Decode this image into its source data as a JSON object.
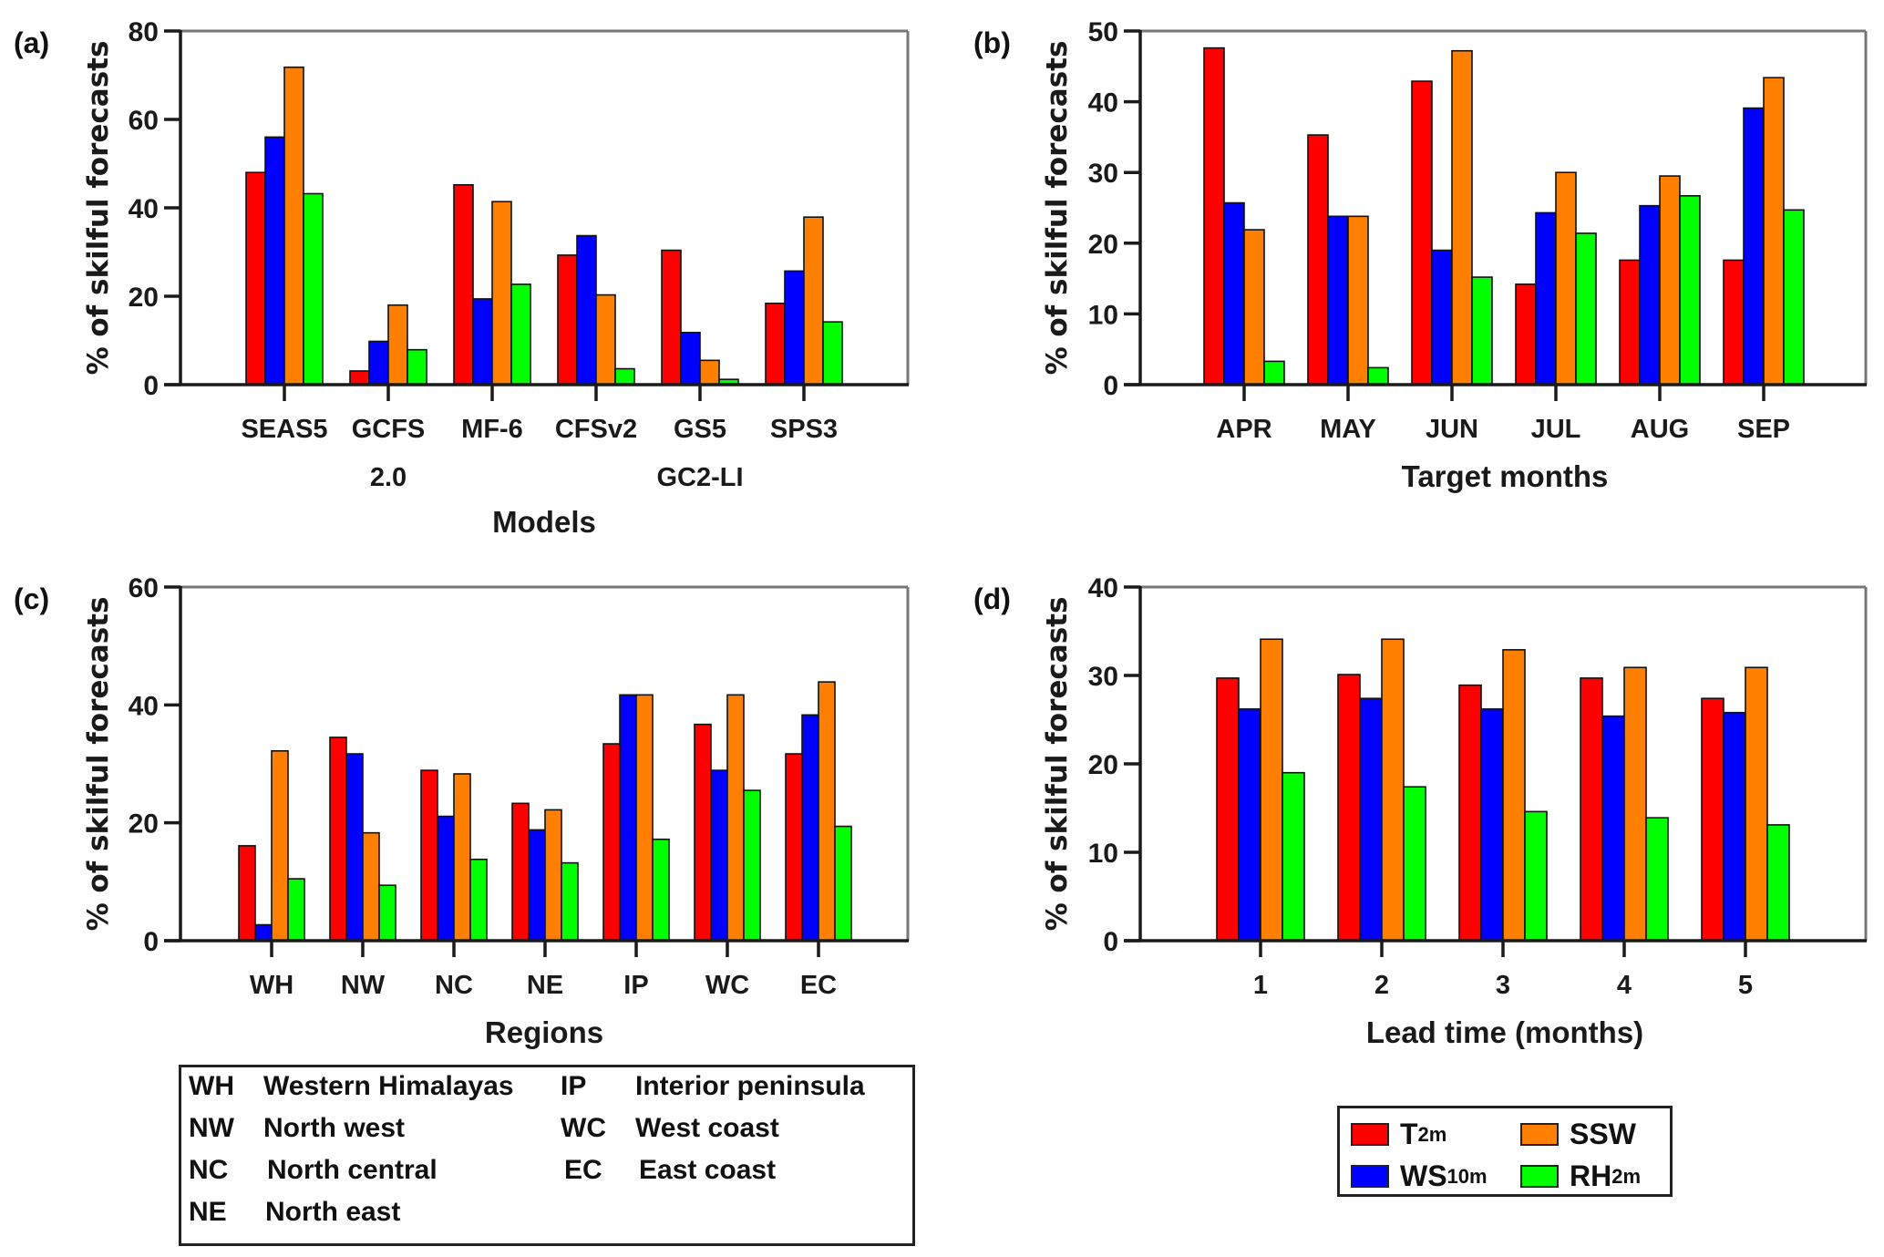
{
  "series_meta": [
    {
      "key": "T2m",
      "label": "T",
      "sub": "2m",
      "color": "#ff0000"
    },
    {
      "key": "WS10m",
      "label": "WS",
      "sub": "10m",
      "color": "#0000ff"
    },
    {
      "key": "SSW",
      "label": "SSW",
      "sub": "",
      "color": "#ff8000"
    },
    {
      "key": "RH2m",
      "label": "RH",
      "sub": "2m",
      "color": "#00ff00"
    }
  ],
  "chart_data": [
    {
      "panel": "(a)",
      "type": "bar",
      "title": "",
      "xlabel": "Models",
      "ylabel": "% of skilful forecasts",
      "ylim": [
        0,
        80
      ],
      "yticks": [
        0,
        20,
        40,
        60,
        80
      ],
      "grid": false,
      "categories": [
        "SEAS5",
        "GCFS",
        "MF-6",
        "CFSv2",
        "GS5",
        "SPS3"
      ],
      "categories_line2": [
        "",
        "2.0",
        "",
        "",
        "GC2-LI",
        ""
      ],
      "series": [
        {
          "name": "T2m",
          "values": [
            48.0,
            3.1,
            45.2,
            29.3,
            30.4,
            18.4
          ]
        },
        {
          "name": "WS10m",
          "values": [
            56.0,
            9.8,
            19.4,
            33.7,
            11.8,
            25.7
          ]
        },
        {
          "name": "SSW",
          "values": [
            71.8,
            18.0,
            41.4,
            20.3,
            5.5,
            37.9
          ]
        },
        {
          "name": "RH2m",
          "values": [
            43.2,
            7.9,
            22.7,
            3.6,
            1.2,
            14.2
          ]
        }
      ]
    },
    {
      "panel": "(b)",
      "type": "bar",
      "title": "",
      "xlabel": "Target months",
      "ylabel": "% of skilful forecasts",
      "ylim": [
        0,
        50
      ],
      "yticks": [
        0,
        10,
        20,
        30,
        40,
        50
      ],
      "grid": false,
      "categories": [
        "APR",
        "MAY",
        "JUN",
        "JUL",
        "AUG",
        "SEP"
      ],
      "categories_line2": [
        "",
        "",
        "",
        "",
        "",
        ""
      ],
      "series": [
        {
          "name": "T2m",
          "values": [
            47.6,
            35.3,
            42.9,
            14.2,
            17.6,
            17.6
          ]
        },
        {
          "name": "WS10m",
          "values": [
            25.7,
            23.8,
            19.0,
            24.3,
            25.3,
            39.1
          ]
        },
        {
          "name": "SSW",
          "values": [
            21.9,
            23.8,
            47.2,
            30.0,
            29.5,
            43.4
          ]
        },
        {
          "name": "RH2m",
          "values": [
            3.3,
            2.4,
            15.2,
            21.4,
            26.7,
            24.7
          ]
        }
      ]
    },
    {
      "panel": "(c)",
      "type": "bar",
      "title": "",
      "xlabel": "Regions",
      "ylabel": "% of skilful forecasts",
      "ylim": [
        0,
        60
      ],
      "yticks": [
        0,
        20,
        40,
        60
      ],
      "grid": false,
      "categories": [
        "WH",
        "NW",
        "NC",
        "NE",
        "IP",
        "WC",
        "EC"
      ],
      "categories_line2": [
        "",
        "",
        "",
        "",
        "",
        "",
        ""
      ],
      "series": [
        {
          "name": "T2m",
          "values": [
            16.1,
            34.5,
            28.9,
            23.3,
            33.4,
            36.7,
            31.7
          ]
        },
        {
          "name": "WS10m",
          "values": [
            2.7,
            31.7,
            21.1,
            18.8,
            41.7,
            28.9,
            38.3
          ]
        },
        {
          "name": "SSW",
          "values": [
            32.2,
            18.3,
            28.3,
            22.2,
            41.7,
            41.7,
            43.9
          ]
        },
        {
          "name": "RH2m",
          "values": [
            10.5,
            9.4,
            13.8,
            13.2,
            17.2,
            25.5,
            19.4
          ]
        }
      ]
    },
    {
      "panel": "(d)",
      "type": "bar",
      "title": "",
      "xlabel": "Lead time (months)",
      "ylabel": "% of skilful forecasts",
      "ylim": [
        0,
        40
      ],
      "yticks": [
        0,
        10,
        20,
        30,
        40
      ],
      "grid": false,
      "categories": [
        "1",
        "2",
        "3",
        "4",
        "5"
      ],
      "categories_line2": [
        "",
        "",
        "",
        "",
        ""
      ],
      "series": [
        {
          "name": "T2m",
          "values": [
            29.7,
            30.1,
            28.9,
            29.7,
            27.4
          ]
        },
        {
          "name": "WS10m",
          "values": [
            26.2,
            27.4,
            26.2,
            25.4,
            25.8
          ]
        },
        {
          "name": "SSW",
          "values": [
            34.1,
            34.1,
            32.9,
            30.9,
            30.9
          ]
        },
        {
          "name": "RH2m",
          "values": [
            19.0,
            17.4,
            14.6,
            13.9,
            13.1
          ]
        }
      ]
    }
  ],
  "region_legend": {
    "left": [
      {
        "abbr": "WH",
        "name": "Western Himalayas"
      },
      {
        "abbr": "NW",
        "name": "North west"
      },
      {
        "abbr": "NC",
        "name": "North central"
      },
      {
        "abbr": "NE",
        "name": "North east"
      }
    ],
    "right": [
      {
        "abbr": "IP",
        "name": "Interior peninsula"
      },
      {
        "abbr": "WC",
        "name": "West coast"
      },
      {
        "abbr": "EC",
        "name": "East coast"
      }
    ]
  },
  "variable_legend": {
    "position": "bottom-right",
    "items": [
      {
        "label": "T",
        "sub": "2m",
        "color": "#ff0000"
      },
      {
        "label": "SSW",
        "sub": "",
        "color": "#ff8000"
      },
      {
        "label": "WS",
        "sub": "10m",
        "color": "#0000ff"
      },
      {
        "label": "RH",
        "sub": "2m",
        "color": "#00ff00"
      }
    ]
  }
}
